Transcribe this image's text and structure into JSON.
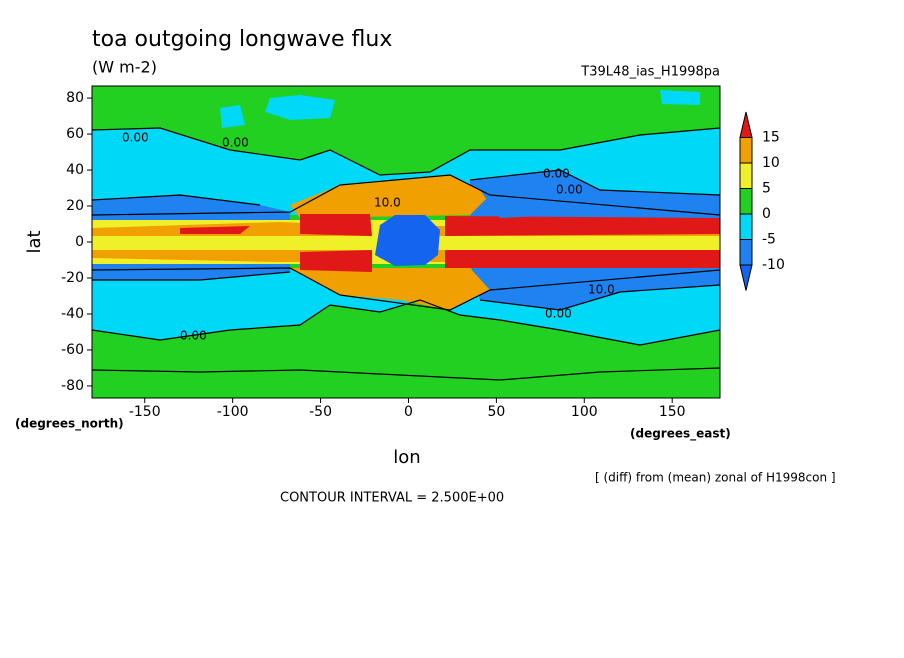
{
  "chart_data": {
    "type": "contour",
    "title": "toa outgoing longwave flux",
    "subtitle": "(W m-2)",
    "run": "T39L48_ias_H1998pa",
    "x_label": "lon",
    "y_label": "lat",
    "x_units": "(degrees_east)",
    "y_units": "(degrees_north)",
    "note": "[ (diff) from (mean) zonal of H1998con ]",
    "contour_interval": "CONTOUR INTERVAL = 2.500E+00",
    "xlim": [
      -180,
      177.1875
    ],
    "ylim": [
      -86.7,
      86.7
    ],
    "xticks": [
      -150,
      -100,
      -50,
      0,
      50,
      100,
      150
    ],
    "yticks": [
      -80,
      -60,
      -40,
      -20,
      0,
      20,
      40,
      60,
      80
    ],
    "levels": [
      -10,
      -5,
      0,
      5,
      10,
      15
    ],
    "colors": [
      "#1464f0",
      "#1e82f0",
      "#00d8f8",
      "#22d022",
      "#f0f028",
      "#f0a000",
      "#e01818"
    ],
    "annotations": [
      "0.00",
      "0.00",
      "0.00",
      "0.00",
      "0.00",
      "0.00",
      "10.0",
      "10.0"
    ]
  }
}
